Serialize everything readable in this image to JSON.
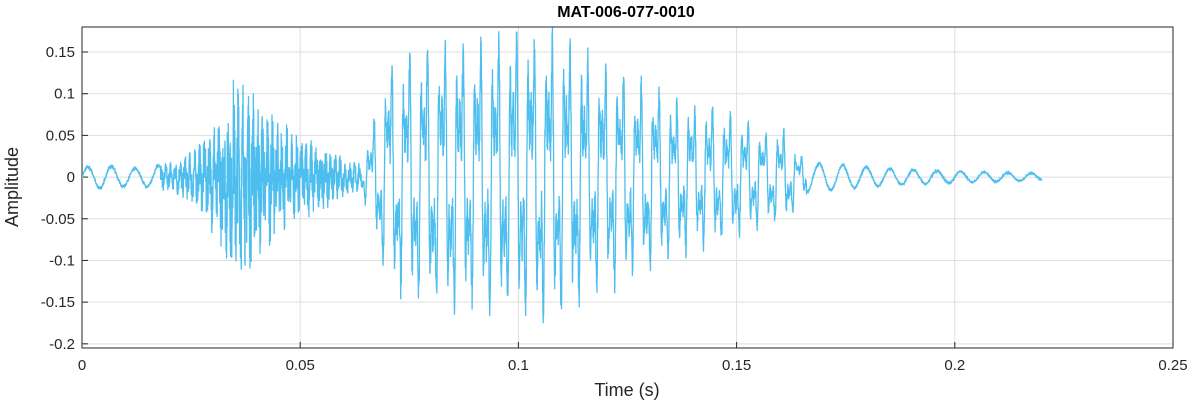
{
  "chart_data": {
    "type": "line",
    "title": "MAT-006-077-0010",
    "xlabel": "Time (s)",
    "ylabel": "Amplitude",
    "xlim": [
      0,
      0.25
    ],
    "ylim": [
      -0.205,
      0.18
    ],
    "xticks": [
      0,
      0.05,
      0.1,
      0.15,
      0.2,
      0.25
    ],
    "xtick_labels": [
      "0",
      "0.05",
      "0.1",
      "0.15",
      "0.2",
      "0.25"
    ],
    "yticks": [
      -0.2,
      -0.15,
      -0.1,
      -0.05,
      0,
      0.05,
      0.1,
      0.15
    ],
    "ytick_labels": [
      "-0.2",
      "-0.15",
      "-0.1",
      "-0.05",
      "0",
      "0.05",
      "0.1",
      "0.15"
    ],
    "grid": true,
    "line_color": "#4DBEEE",
    "series": [
      {
        "x": [
          0,
          0.002,
          0.004,
          0.006,
          0.008,
          0.01,
          0.012,
          0.014,
          0.016,
          0.018,
          0.02,
          0.022,
          0.024,
          0.026,
          0.028,
          0.03,
          0.032,
          0.034,
          0.036,
          0.038,
          0.04,
          0.042,
          0.044,
          0.046,
          0.048,
          0.05,
          0.052,
          0.054,
          0.056,
          0.058,
          0.06,
          0.062,
          0.064,
          0.066,
          0.068,
          0.07,
          0.072,
          0.074,
          0.076,
          0.078,
          0.08,
          0.082,
          0.084,
          0.086,
          0.088,
          0.09,
          0.092,
          0.094,
          0.096,
          0.098,
          0.1,
          0.102,
          0.104,
          0.106,
          0.108,
          0.11,
          0.112,
          0.114,
          0.116,
          0.118,
          0.12,
          0.122,
          0.124,
          0.126,
          0.128,
          0.13,
          0.132,
          0.134,
          0.136,
          0.138,
          0.14,
          0.142,
          0.144,
          0.146,
          0.148,
          0.15,
          0.152,
          0.154,
          0.156,
          0.158,
          0.16,
          0.162,
          0.164,
          0.166,
          0.168,
          0.17,
          0.172,
          0.174,
          0.176,
          0.178,
          0.18,
          0.182,
          0.184,
          0.186,
          0.188,
          0.19,
          0.192,
          0.194,
          0.196,
          0.198,
          0.2,
          0.202,
          0.204,
          0.206,
          0.208,
          0.21,
          0.212,
          0.214,
          0.216,
          0.218,
          0.22
        ],
        "envelope": [
          0.012,
          0.014,
          0.015,
          0.015,
          0.013,
          0.012,
          0.011,
          0.012,
          0.014,
          0.016,
          0.02,
          0.024,
          0.03,
          0.036,
          0.05,
          0.07,
          0.09,
          0.12,
          0.125,
          0.13,
          0.11,
          0.09,
          0.08,
          0.07,
          0.06,
          0.055,
          0.05,
          0.045,
          0.04,
          0.03,
          0.025,
          0.02,
          0.02,
          0.05,
          0.1,
          0.14,
          0.145,
          0.15,
          0.155,
          0.16,
          0.162,
          0.165,
          0.168,
          0.17,
          0.17,
          0.17,
          0.172,
          0.175,
          0.175,
          0.176,
          0.178,
          0.18,
          0.185,
          0.19,
          0.18,
          0.17,
          0.165,
          0.16,
          0.15,
          0.145,
          0.14,
          0.135,
          0.13,
          0.125,
          0.12,
          0.115,
          0.11,
          0.105,
          0.1,
          0.095,
          0.09,
          0.09,
          0.088,
          0.085,
          0.08,
          0.075,
          0.07,
          0.065,
          0.06,
          0.06,
          0.06,
          0.055,
          0.03,
          0.02,
          0.018,
          0.018,
          0.017,
          0.016,
          0.015,
          0.014,
          0.013,
          0.012,
          0.012,
          0.011,
          0.01,
          0.01,
          0.009,
          0.009,
          0.008,
          0.008,
          0.008,
          0.007,
          0.007,
          0.007,
          0.006,
          0.006,
          0.006,
          0.005,
          0.005,
          0.005,
          0.004
        ]
      }
    ]
  }
}
